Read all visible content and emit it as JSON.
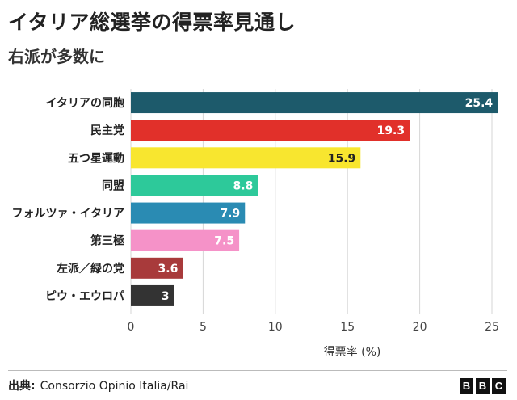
{
  "header": {
    "title": "イタリア総選挙の得票率見通し",
    "subtitle": "右派が多数に"
  },
  "chart_data": {
    "type": "bar",
    "orientation": "horizontal",
    "categories": [
      "イタリアの同胞",
      "民主党",
      "五つ星運動",
      "同盟",
      "フォルツァ・イタリア",
      "第三極",
      "左派／緑の党",
      "ピウ・エウロパ"
    ],
    "values": [
      25.4,
      19.3,
      15.9,
      8.8,
      7.9,
      7.5,
      3.6,
      3
    ],
    "value_labels": [
      "25.4",
      "19.3",
      "15.9",
      "8.8",
      "7.9",
      "7.5",
      "3.6",
      "3"
    ],
    "colors": [
      "#1d5a6b",
      "#e1302a",
      "#f8e62f",
      "#2dc99a",
      "#2a8bb3",
      "#f592c8",
      "#a83a3b",
      "#333333"
    ],
    "label_colors": [
      "#ffffff",
      "#ffffff",
      "#222222",
      "#ffffff",
      "#ffffff",
      "#ffffff",
      "#ffffff",
      "#ffffff"
    ],
    "xlim": [
      0,
      26
    ],
    "xticks": [
      0,
      5,
      10,
      15,
      20,
      25
    ],
    "xtick_labels": [
      "0",
      "5",
      "10",
      "15",
      "20",
      "25"
    ],
    "xlabel": "得票率 (%)",
    "ylabel": "",
    "grid": true
  },
  "footer": {
    "source_label": "出典:",
    "source_text": "Consorzio Opinio Italia/Rai",
    "logo_letters": [
      "B",
      "B",
      "C"
    ]
  }
}
